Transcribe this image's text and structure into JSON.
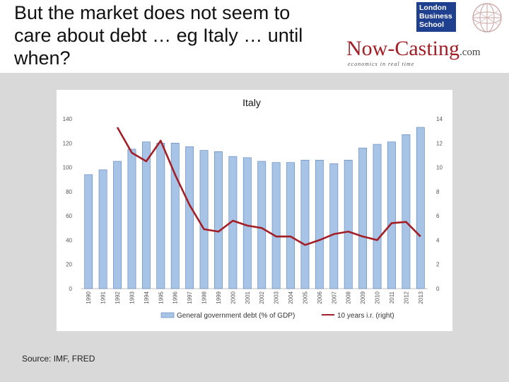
{
  "slide": {
    "title": "But the market does not seem to care about debt … eg Italy … until when?",
    "source": "Source: IMF, FRED"
  },
  "logos": {
    "lbs_lines": [
      "London",
      "Business",
      "School"
    ],
    "nowcasting_name": "Now-Casting",
    "nowcasting_suffix": ".com",
    "nowcasting_tagline": "economics in real time"
  },
  "colors": {
    "bar_fill": "#a7c4e6",
    "bar_stroke": "#5b82b8",
    "line": "#a31f27",
    "lbs_blue": "#1f3f8f"
  },
  "chart_data": {
    "type": "bar",
    "title": "Italy",
    "categories": [
      "1990",
      "1991",
      "1992",
      "1993",
      "1994",
      "1995",
      "1996",
      "1997",
      "1998",
      "1999",
      "2000",
      "2001",
      "2002",
      "2003",
      "2004",
      "2005",
      "2006",
      "2007",
      "2008",
      "2009",
      "2010",
      "2011",
      "2012",
      "2013"
    ],
    "series": [
      {
        "name": "General government debt (% of GDP)",
        "type": "bar",
        "axis": "left",
        "values": [
          94,
          98,
          105,
          115,
          121,
          120,
          120,
          117,
          114,
          113,
          109,
          108,
          105,
          104,
          104,
          106,
          106,
          103,
          106,
          116,
          119,
          121,
          127,
          133
        ]
      },
      {
        "name": "10 years i.r. (right)",
        "type": "line",
        "axis": "right",
        "values": [
          null,
          null,
          13.3,
          11.2,
          10.5,
          12.2,
          9.4,
          6.9,
          4.9,
          4.7,
          5.6,
          5.2,
          5.0,
          4.3,
          4.3,
          3.6,
          4.0,
          4.5,
          4.7,
          4.3,
          4.0,
          5.4,
          5.5,
          4.3
        ]
      }
    ],
    "y_left": {
      "ylim": [
        0,
        140
      ],
      "ticks": [
        "0",
        "20",
        "40",
        "60",
        "80",
        "100",
        "120",
        "140"
      ]
    },
    "y_right": {
      "ylim": [
        0,
        14
      ],
      "ticks": [
        "0",
        "2",
        "4",
        "6",
        "8",
        "10",
        "12",
        "14"
      ]
    },
    "legend_position": "bottom",
    "grid": false
  }
}
